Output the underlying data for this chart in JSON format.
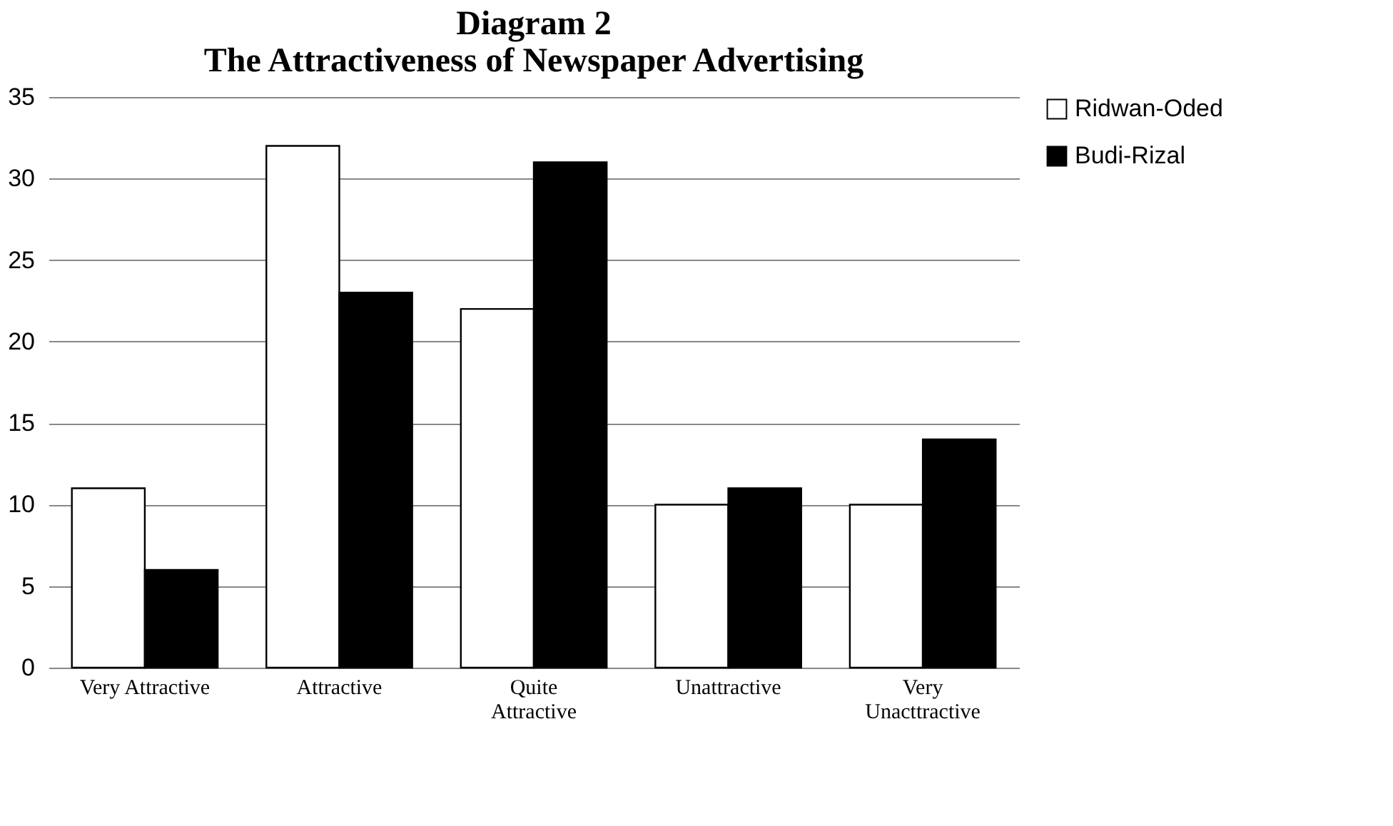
{
  "chart_data": {
    "type": "bar",
    "title": [
      "Diagram 2",
      "The Attractiveness of Newspaper Advertising"
    ],
    "categories": [
      "Very Attractive",
      "Attractive",
      "Quite Attractive",
      "Unattractive",
      "Very Unacttractive"
    ],
    "series": [
      {
        "name": "Ridwan-Oded",
        "color": "#ffffff",
        "values": [
          11,
          32,
          22,
          10,
          10
        ]
      },
      {
        "name": "Budi-Rizal",
        "color": "#000000",
        "values": [
          6,
          23,
          31,
          11,
          14
        ]
      }
    ],
    "ylim": [
      0,
      35
    ],
    "yticks": [
      0,
      5,
      10,
      15,
      20,
      25,
      30,
      35
    ],
    "grid": "y",
    "legend": "right"
  }
}
